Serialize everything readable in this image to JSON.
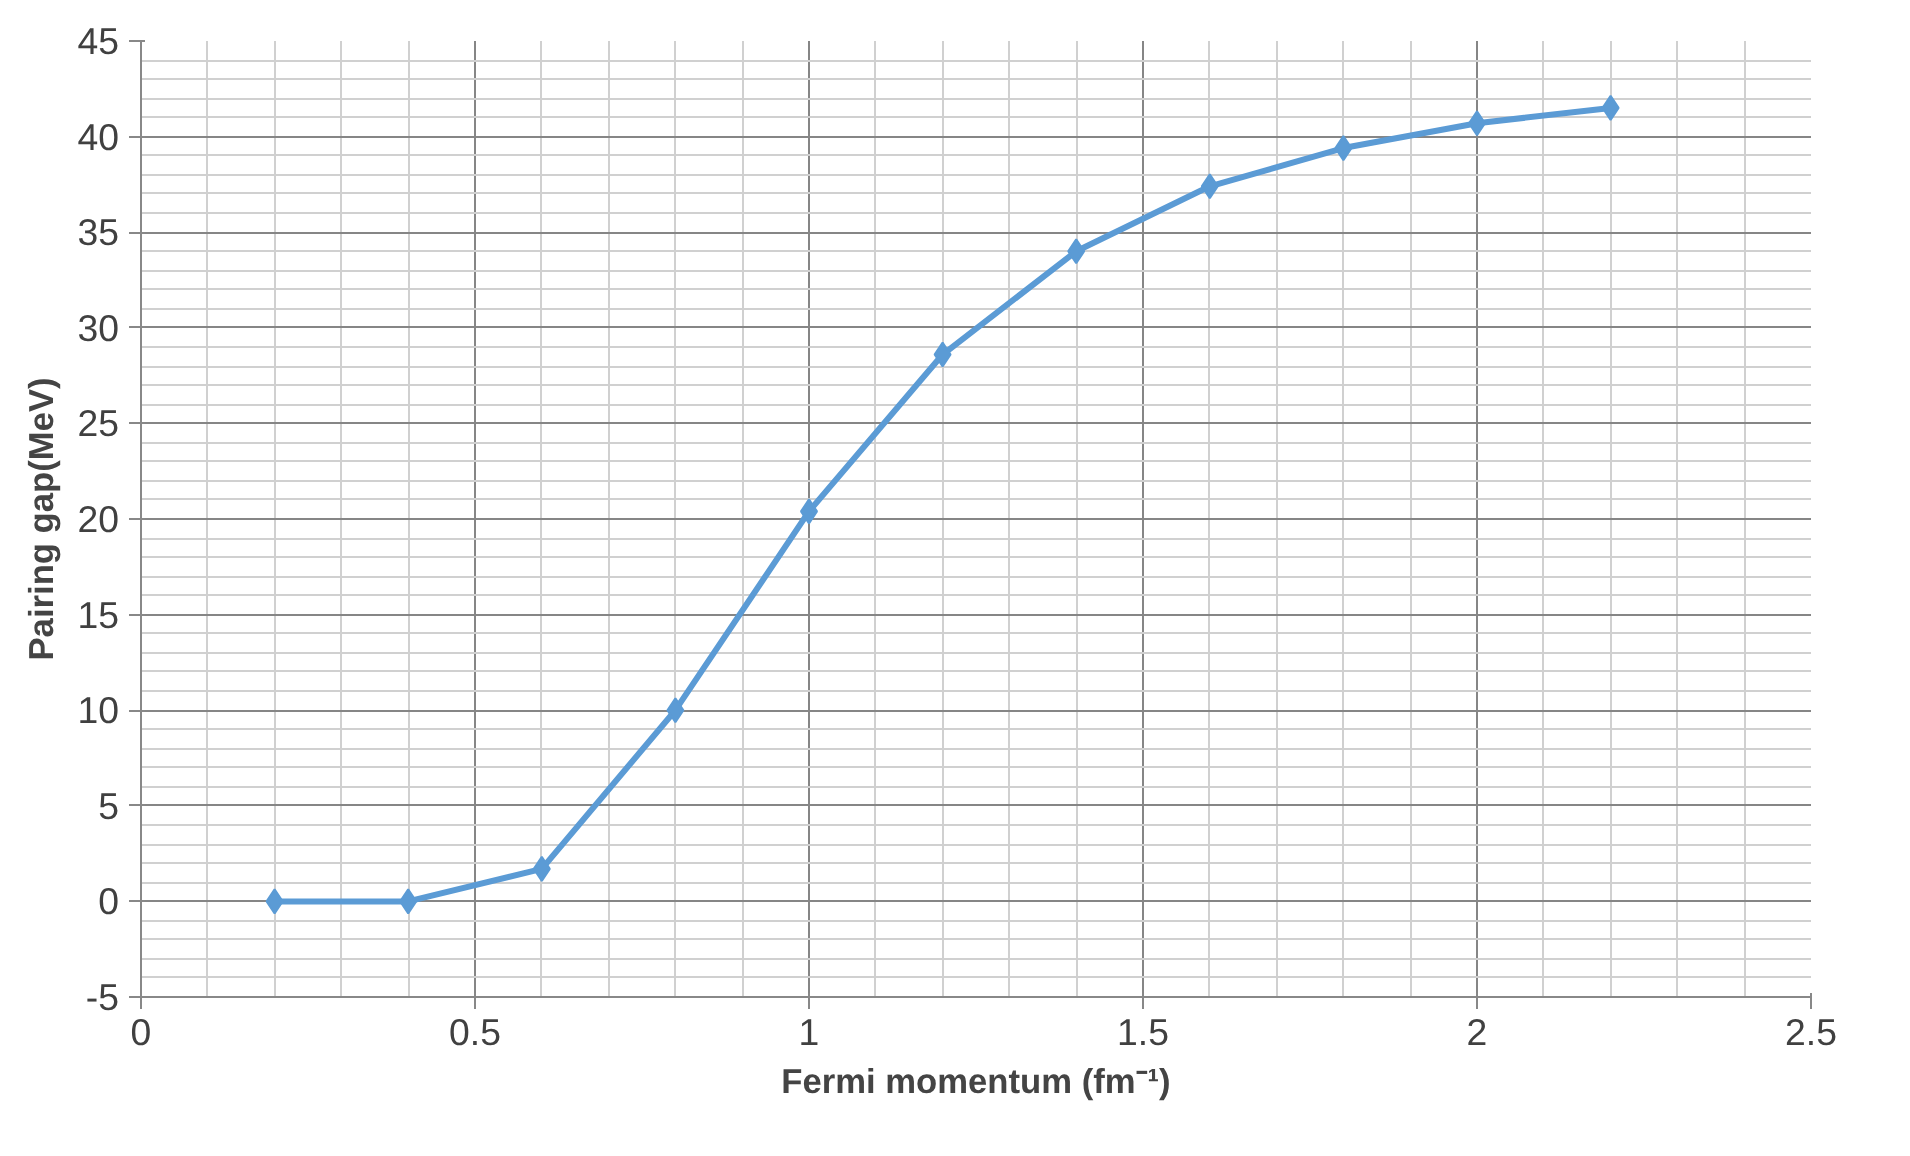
{
  "chart_data": {
    "type": "line",
    "xlabel": "Fermi momentum (fm⁻¹)",
    "ylabel": "Pairing gap(MeV)",
    "x": [
      0.2,
      0.4,
      0.6,
      0.8,
      1.0,
      1.2,
      1.4,
      1.6,
      1.8,
      2.0,
      2.2
    ],
    "series": [
      {
        "color": "#5b9bd5",
        "values": [
          0,
          0,
          1.7,
          10,
          20.4,
          28.6,
          34,
          37.4,
          39.4,
          40.7,
          41.5
        ]
      }
    ],
    "xlim": [
      0,
      2.5
    ],
    "xticks": [
      0,
      0.5,
      1,
      1.5,
      2,
      2.5
    ],
    "ylim": [
      -5,
      45
    ],
    "yticks": [
      -5,
      0,
      5,
      10,
      15,
      20,
      25,
      30,
      35,
      40,
      45
    ],
    "grid": true,
    "marker": "diamond",
    "line_style": "solid"
  }
}
